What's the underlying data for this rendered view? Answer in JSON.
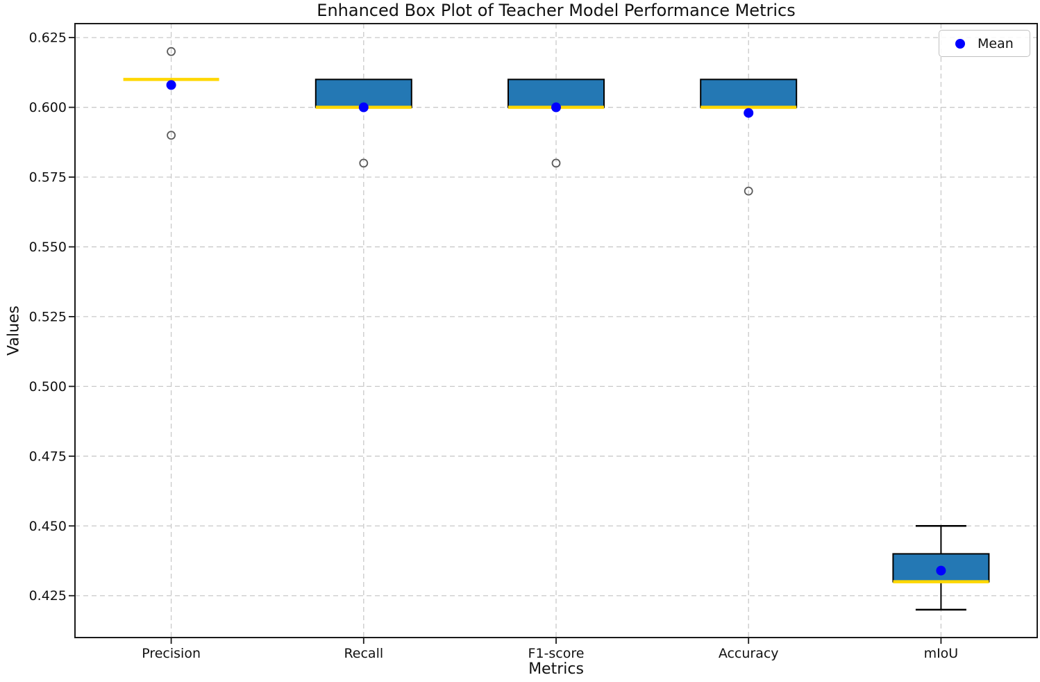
{
  "chart_data": {
    "type": "boxplot",
    "title": "Enhanced Box Plot of Teacher Model Performance Metrics",
    "xlabel": "Metrics",
    "ylabel": "Values",
    "categories": [
      "Precision",
      "Recall",
      "F1-score",
      "Accuracy",
      "mIoU"
    ],
    "ylim": [
      0.41,
      0.63
    ],
    "yticks": [
      0.425,
      0.45,
      0.475,
      0.5,
      0.525,
      0.55,
      0.575,
      0.6,
      0.625
    ],
    "grid": true,
    "legend": {
      "label": "Mean",
      "position": "upper right"
    },
    "series": [
      {
        "category": "Precision",
        "whisker_low": 0.61,
        "q1": 0.61,
        "median": 0.61,
        "q3": 0.61,
        "whisker_high": 0.61,
        "mean": 0.608,
        "outliers": [
          0.62,
          0.59
        ]
      },
      {
        "category": "Recall",
        "whisker_low": 0.6,
        "q1": 0.6,
        "median": 0.6,
        "q3": 0.61,
        "whisker_high": 0.61,
        "mean": 0.6,
        "outliers": [
          0.58
        ]
      },
      {
        "category": "F1-score",
        "whisker_low": 0.6,
        "q1": 0.6,
        "median": 0.6,
        "q3": 0.61,
        "whisker_high": 0.61,
        "mean": 0.6,
        "outliers": [
          0.58
        ]
      },
      {
        "category": "Accuracy",
        "whisker_low": 0.6,
        "q1": 0.6,
        "median": 0.6,
        "q3": 0.61,
        "whisker_high": 0.61,
        "mean": 0.598,
        "outliers": [
          0.57
        ]
      },
      {
        "category": "mIoU",
        "whisker_low": 0.42,
        "q1": 0.43,
        "median": 0.43,
        "q3": 0.44,
        "whisker_high": 0.45,
        "mean": 0.434,
        "outliers": []
      }
    ],
    "colors": {
      "box_fill": "#2478b4",
      "box_edge": "#000000",
      "median": "#ffd700",
      "mean_marker": "#0000ff",
      "outlier_edge": "#5a5a5a",
      "grid": "#c9c9c9",
      "axis": "#1a1a1a",
      "text": "#111111"
    }
  }
}
